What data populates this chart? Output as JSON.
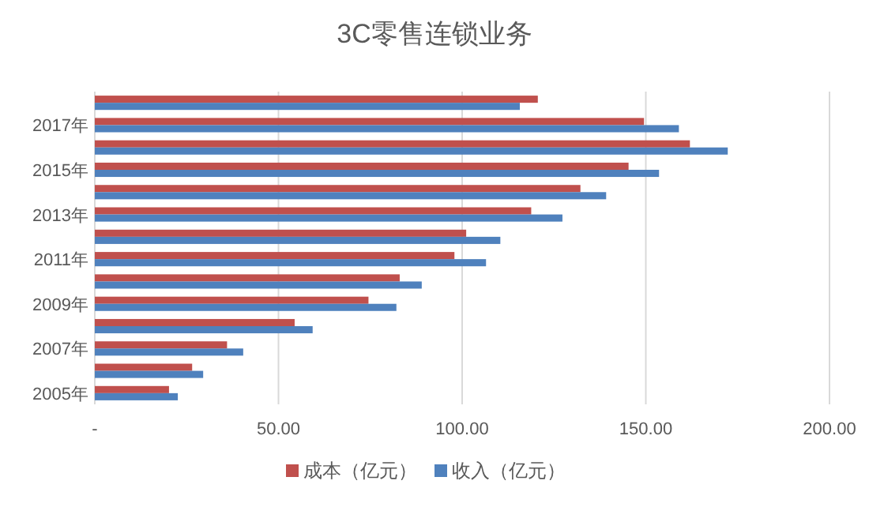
{
  "chart_data": {
    "type": "bar",
    "orientation": "horizontal",
    "title": "3C零售连锁业务",
    "categories": [
      null,
      "2017年",
      null,
      "2015年",
      null,
      "2013年",
      null,
      "2011年",
      null,
      "2009年",
      null,
      "2007年",
      null,
      "2005年"
    ],
    "series": [
      {
        "name": "成本（亿元）",
        "color": "#c0504d",
        "values": [
          120.6,
          149.5,
          162.0,
          145.3,
          132.2,
          118.8,
          101.1,
          97.9,
          83.0,
          74.5,
          54.4,
          36.0,
          26.5,
          20.2
        ]
      },
      {
        "name": "收入（亿元）",
        "color": "#4f81bd",
        "values": [
          115.7,
          159.0,
          172.3,
          153.6,
          139.2,
          127.3,
          110.4,
          106.5,
          89.0,
          82.1,
          59.3,
          40.4,
          29.5,
          22.6
        ]
      }
    ],
    "xlim": [
      0,
      200
    ],
    "xticks": [
      {
        "value": 0,
        "label": "-"
      },
      {
        "value": 50,
        "label": "50.00"
      },
      {
        "value": 100,
        "label": "100.00"
      },
      {
        "value": 150,
        "label": "150.00"
      },
      {
        "value": 200,
        "label": "200.00"
      }
    ],
    "grid": "x",
    "legend": "bottom"
  }
}
